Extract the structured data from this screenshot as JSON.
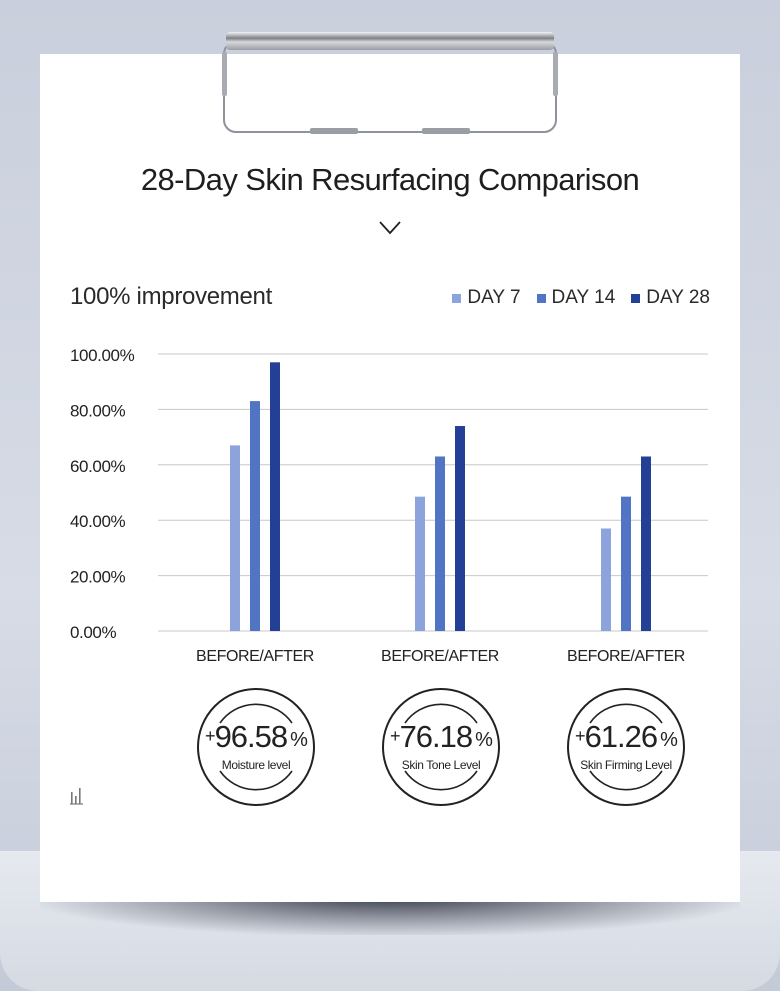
{
  "title": "28-Day Skin Resurfacing Comparison",
  "colors": {
    "day7": "#8ca3dc",
    "day14": "#5274c4",
    "day28": "#243f96",
    "grid": "#c8c8c8",
    "text": "#222222"
  },
  "chart_data": {
    "type": "bar",
    "title": "100% improvement",
    "categories": [
      "BEFORE/AFTER",
      "BEFORE/AFTER",
      "BEFORE/AFTER"
    ],
    "series": [
      {
        "name": "DAY 7",
        "values": [
          67,
          48.5,
          37
        ]
      },
      {
        "name": "DAY 14",
        "values": [
          83,
          63,
          48.5
        ]
      },
      {
        "name": "DAY 28",
        "values": [
          97,
          74,
          63
        ]
      }
    ],
    "yticks": [
      "0.00%",
      "20.00%",
      "40.00%",
      "60.00%",
      "80.00%",
      "100.00%"
    ],
    "ylim": [
      0,
      100
    ],
    "grid": true,
    "legend_position": "top-right"
  },
  "stats": [
    {
      "sign": "+",
      "value": "96.58",
      "unit": "%",
      "label": "Moisture level"
    },
    {
      "sign": "+",
      "value": "76.18",
      "unit": "%",
      "label": "Skin Tone Level"
    },
    {
      "sign": "+",
      "value": "61.26",
      "unit": "%",
      "label": "Skin Firming Level"
    }
  ],
  "icons": {
    "chevron": "chevron-down-icon",
    "chart": "bar-chart-icon",
    "clip": "clipboard-clip-icon"
  }
}
